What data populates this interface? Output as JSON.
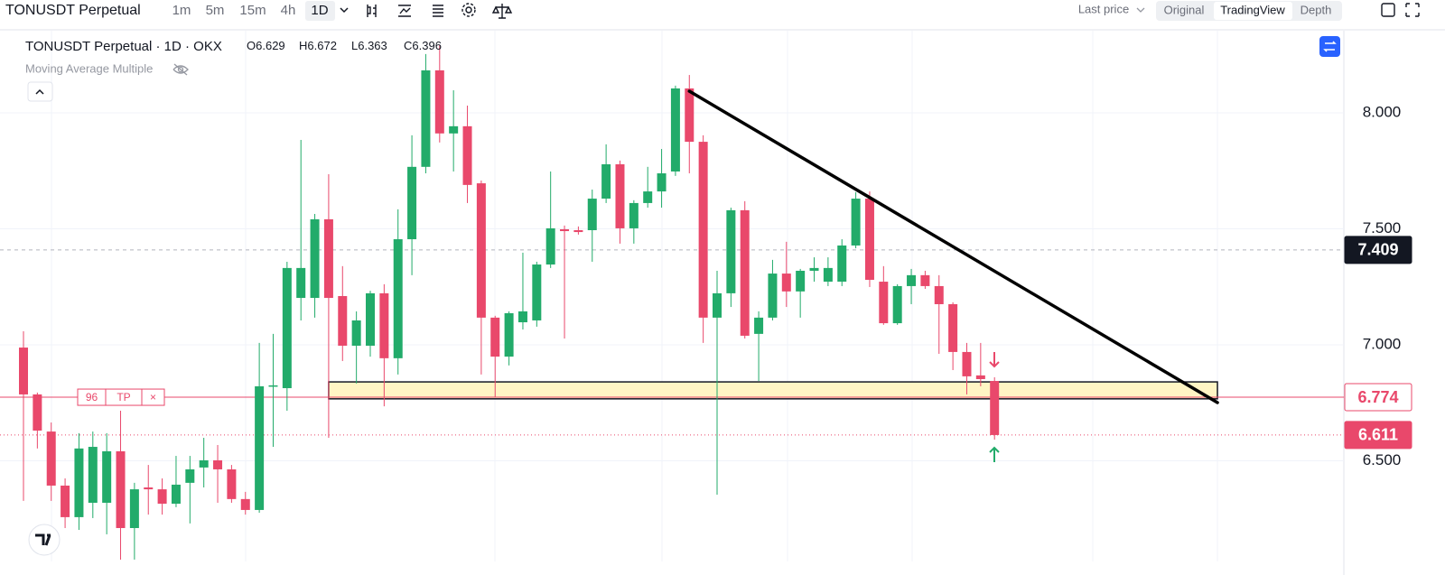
{
  "toolbar": {
    "symbol": "TONUSDT Perpetual",
    "intervals": [
      "1m",
      "5m",
      "15m",
      "4h",
      "1D"
    ],
    "price_type": "Last price",
    "views": [
      "Original",
      "TradingView",
      "Depth"
    ]
  },
  "legend": {
    "title": "TONUSDT Perpetual · 1D · OKX",
    "ohlc": [
      {
        "label": "O",
        "value": 6.629
      },
      {
        "label": "H",
        "value": 6.672
      },
      {
        "label": "L",
        "value": 6.363
      },
      {
        "label": "C",
        "value": 6.396
      }
    ],
    "indicator": "Moving Average Multiple"
  },
  "position": {
    "qty": "96",
    "label": "TP",
    "close": "×"
  },
  "chart_data": {
    "type": "candlestick",
    "open": [
      6.988,
      6.786,
      6.626,
      6.393,
      6.257,
      6.319,
      6.319,
      6.541,
      6.21,
      6.385,
      6.377,
      6.315,
      6.405,
      6.471,
      6.502,
      6.463,
      6.335,
      6.288,
      6.821,
      6.813,
      7.202,
      7.202,
      7.541,
      7.21,
      6.996,
      6.996,
      7.222,
      6.942,
      7.455,
      7.767,
      8.183,
      7.911,
      7.942,
      7.696,
      7.117,
      6.949,
      7.097,
      7.105,
      7.346,
      7.498,
      7.494,
      7.494,
      7.63,
      7.778,
      7.502,
      7.611,
      7.661,
      7.747,
      8.105,
      7.875,
      7.117,
      7.222,
      7.58,
      7.047,
      7.117,
      7.307,
      7.23,
      7.319,
      7.272,
      7.272,
      7.428,
      7.63,
      7.272,
      7.093,
      7.253,
      7.3,
      7.253,
      7.175,
      6.969,
      6.868,
      6.844
    ],
    "high": [
      7.058,
      6.794,
      6.665,
      6.424,
      6.619,
      6.626,
      6.619,
      6.716,
      6.405,
      6.482,
      6.424,
      6.521,
      6.521,
      6.599,
      6.568,
      6.482,
      6.366,
      7.008,
      7.047,
      7.358,
      7.883,
      7.564,
      7.735,
      7.339,
      7.144,
      7.233,
      7.261,
      7.584,
      7.903,
      8.253,
      8.292,
      8.097,
      8.031,
      7.708,
      7.125,
      7.144,
      7.397,
      7.358,
      7.747,
      7.514,
      7.51,
      7.669,
      7.864,
      7.794,
      7.623,
      7.767,
      7.844,
      8.117,
      8.163,
      7.903,
      7.319,
      7.591,
      7.619,
      7.144,
      7.366,
      7.444,
      7.327,
      7.377,
      7.377,
      7.455,
      7.658,
      7.661,
      7.339,
      7.261,
      7.327,
      7.319,
      7.3,
      7.183,
      7.008,
      7.008,
      6.86
    ],
    "low": [
      6.327,
      6.553,
      6.327,
      6.21,
      6.202,
      6.253,
      6.183,
      6.074,
      6.074,
      6.268,
      6.268,
      6.3,
      6.23,
      6.385,
      6.319,
      6.319,
      6.268,
      6.276,
      6.56,
      6.716,
      7.105,
      7.117,
      6.599,
      6.93,
      6.833,
      6.949,
      6.735,
      6.872,
      7.3,
      7.739,
      7.872,
      7.747,
      7.611,
      6.872,
      6.774,
      6.911,
      7.066,
      7.078,
      7.331,
      7.027,
      7.475,
      7.358,
      7.611,
      7.436,
      7.436,
      7.591,
      7.591,
      7.728,
      7.739,
      7.008,
      6.354,
      7.163,
      7.027,
      6.844,
      7.105,
      7.163,
      7.117,
      7.272,
      7.253,
      7.253,
      7.416,
      7.249,
      7.086,
      7.086,
      7.175,
      7.241,
      6.961,
      6.891,
      6.786,
      6.821,
      6.591
    ],
    "close": [
      6.786,
      6.63,
      6.393,
      6.257,
      6.553,
      6.56,
      6.541,
      6.21,
      6.377,
      6.377,
      6.315,
      6.397,
      6.463,
      6.502,
      6.463,
      6.335,
      6.288,
      6.821,
      6.825,
      7.331,
      7.331,
      7.541,
      7.202,
      6.996,
      7.105,
      7.222,
      6.942,
      7.455,
      7.767,
      8.183,
      7.911,
      7.942,
      7.689,
      7.117,
      6.949,
      7.136,
      7.144,
      7.346,
      7.502,
      7.49,
      7.486,
      7.63,
      7.778,
      7.502,
      7.611,
      7.661,
      7.739,
      8.105,
      7.875,
      7.117,
      7.222,
      7.58,
      7.039,
      7.117,
      7.307,
      7.23,
      7.319,
      7.331,
      7.331,
      7.428,
      7.63,
      7.28,
      7.093,
      7.253,
      7.3,
      7.253,
      7.175,
      6.969,
      6.864,
      6.852,
      6.611
    ],
    "up_color": "#22ab6a",
    "down_color": "#e9486b",
    "ylim": [
      6.066,
      8.35
    ],
    "yticks": [
      {
        "value": 6.5,
        "label": "6.500"
      },
      {
        "value": 7,
        "label": "7.000"
      },
      {
        "value": 7.5,
        "label": "7.500"
      },
      {
        "value": 8,
        "label": "8.000"
      }
    ],
    "grid": true,
    "price_lines": [
      {
        "value": 7.409,
        "label": "7.409"
      },
      {
        "value": 6.774,
        "label": "6.774"
      },
      {
        "value": 6.611,
        "label": "6.611"
      }
    ],
    "zone": {
      "x": [
        22,
        86.07
      ],
      "y": [
        6.767,
        6.84
      ]
    },
    "trendline": {
      "x": [
        48,
        86.07
      ],
      "y": [
        8.093,
        6.751
      ]
    }
  }
}
